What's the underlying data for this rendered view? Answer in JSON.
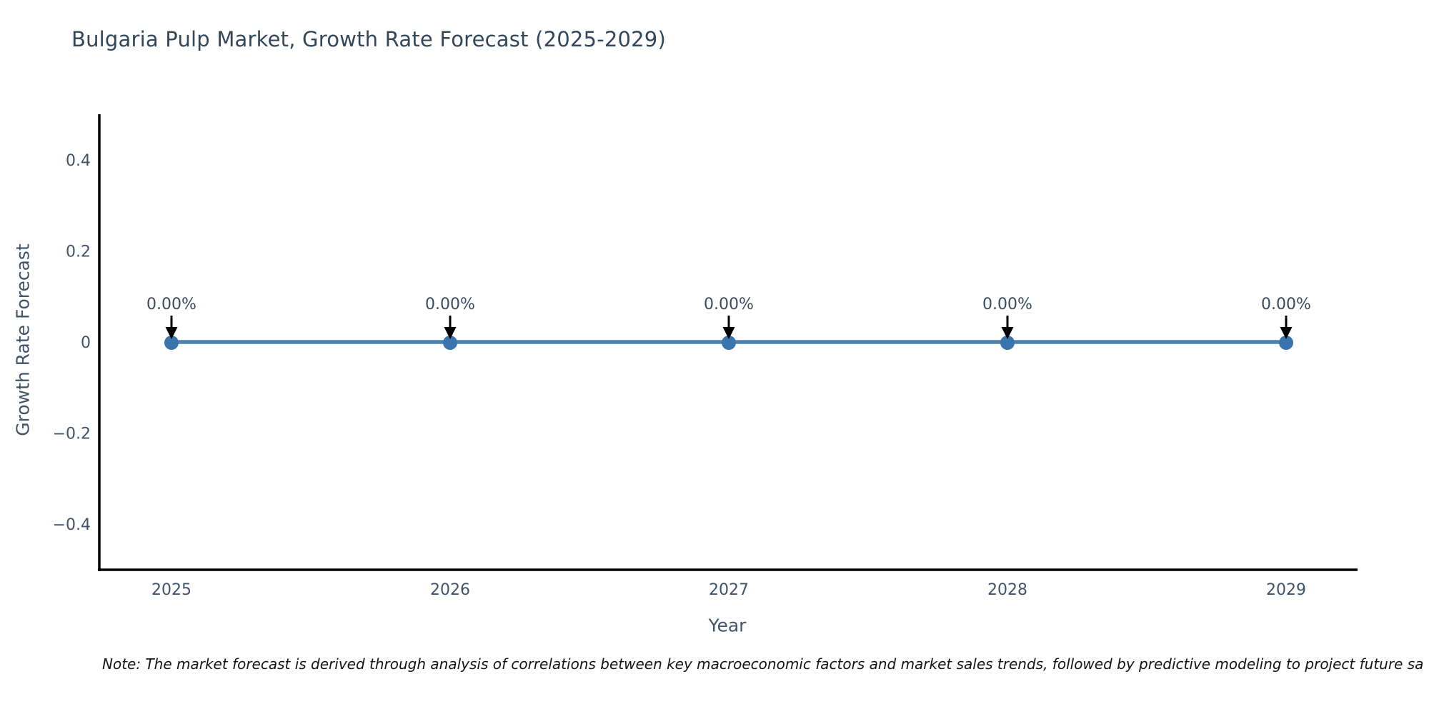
{
  "note": "Note: The market forecast is derived through analysis of correlations between key macroeconomic factors and market sales trends, followed by predictive modeling to project future sa",
  "chart_data": {
    "type": "line",
    "title": "Bulgaria Pulp Market, Growth Rate Forecast (2025-2029)",
    "xlabel": "Year",
    "ylabel": "Growth Rate Forecast",
    "categories": [
      "2025",
      "2026",
      "2027",
      "2028",
      "2029"
    ],
    "series": [
      {
        "name": "Growth Rate Forecast",
        "values": [
          0,
          0,
          0,
          0,
          0
        ],
        "data_labels": [
          "0.00%",
          "0.00%",
          "0.00%",
          "0.00%",
          "0.00%"
        ]
      }
    ],
    "ylim": [
      -0.5,
      0.5
    ],
    "yticks": {
      "values": [
        0.4,
        0.2,
        0,
        -0.2,
        -0.4
      ],
      "labels": [
        "0.4",
        "0.2",
        "0",
        "−0.2",
        "−0.4"
      ]
    },
    "grid": false,
    "legend": null,
    "annotations_style": "label-with-down-arrow-at-each-point",
    "colors": {
      "line": "#5081ad",
      "marker": "#3a74ad",
      "spine": "#000000",
      "arrow": "#000000",
      "tick_text": "#42546a",
      "annotation_text": "#3b4c5e",
      "background": "#ffffff"
    }
  }
}
